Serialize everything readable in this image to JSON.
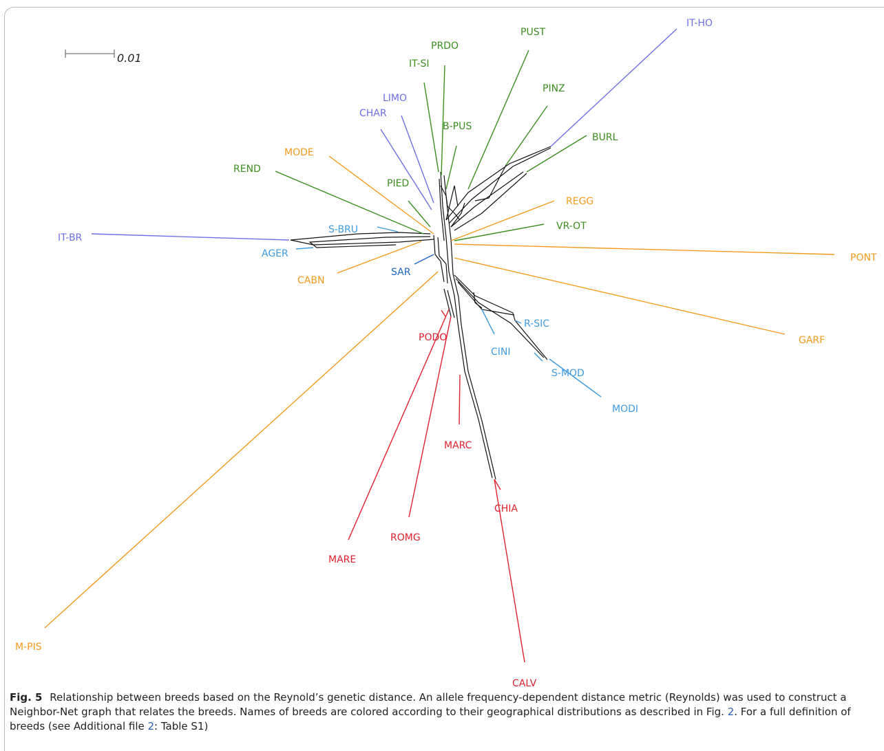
{
  "colors": {
    "green": "#3a8e1f",
    "purple": "#6e6ee6",
    "orange": "#f39a1e",
    "lightblue": "#3f9ae0",
    "blue": "#1c64c8",
    "red": "#e0202e",
    "network": "#111111"
  },
  "scale_bar": {
    "label": "0.01"
  },
  "breeds": [
    {
      "label": "IT-HO",
      "group": "purple"
    },
    {
      "label": "PUST",
      "group": "green"
    },
    {
      "label": "PRDO",
      "group": "green"
    },
    {
      "label": "IT-SI",
      "group": "green"
    },
    {
      "label": "PINZ",
      "group": "green"
    },
    {
      "label": "LIMO",
      "group": "purple"
    },
    {
      "label": "CHAR",
      "group": "purple"
    },
    {
      "label": "B-PUS",
      "group": "green"
    },
    {
      "label": "BURL",
      "group": "green"
    },
    {
      "label": "MODE",
      "group": "orange"
    },
    {
      "label": "REND",
      "group": "green"
    },
    {
      "label": "PIED",
      "group": "green"
    },
    {
      "label": "REGG",
      "group": "orange"
    },
    {
      "label": "VR-OT",
      "group": "green"
    },
    {
      "label": "S-BRU",
      "group": "lightblue"
    },
    {
      "label": "IT-BR",
      "group": "purple"
    },
    {
      "label": "AGER",
      "group": "lightblue"
    },
    {
      "label": "PONT",
      "group": "orange"
    },
    {
      "label": "SAR",
      "group": "blue"
    },
    {
      "label": "CABN",
      "group": "orange"
    },
    {
      "label": "R-SIC",
      "group": "lightblue"
    },
    {
      "label": "GARF",
      "group": "orange"
    },
    {
      "label": "PODO",
      "group": "red"
    },
    {
      "label": "CINI",
      "group": "lightblue"
    },
    {
      "label": "S-MOD",
      "group": "lightblue"
    },
    {
      "label": "MODI",
      "group": "lightblue"
    },
    {
      "label": "MARC",
      "group": "red"
    },
    {
      "label": "CHIA",
      "group": "red"
    },
    {
      "label": "ROMG",
      "group": "red"
    },
    {
      "label": "MARE",
      "group": "red"
    },
    {
      "label": "M-PIS",
      "group": "orange"
    },
    {
      "label": "CALV",
      "group": "red"
    }
  ],
  "caption": {
    "fig_label": "Fig. 5",
    "text_1": "Relationship between breeds based on the Reynold’s genetic distance. An allele frequency-dependent distance metric (Reynolds) was used to construct a Neighbor-Net graph that relates the breeds. Names of breeds are colored according to their geographical distributions as described in Fig. ",
    "ref_1": "2",
    "text_2": ". For a full definition of breeds (see Additional file ",
    "ref_2": "2",
    "text_3": ": Table S1)"
  }
}
